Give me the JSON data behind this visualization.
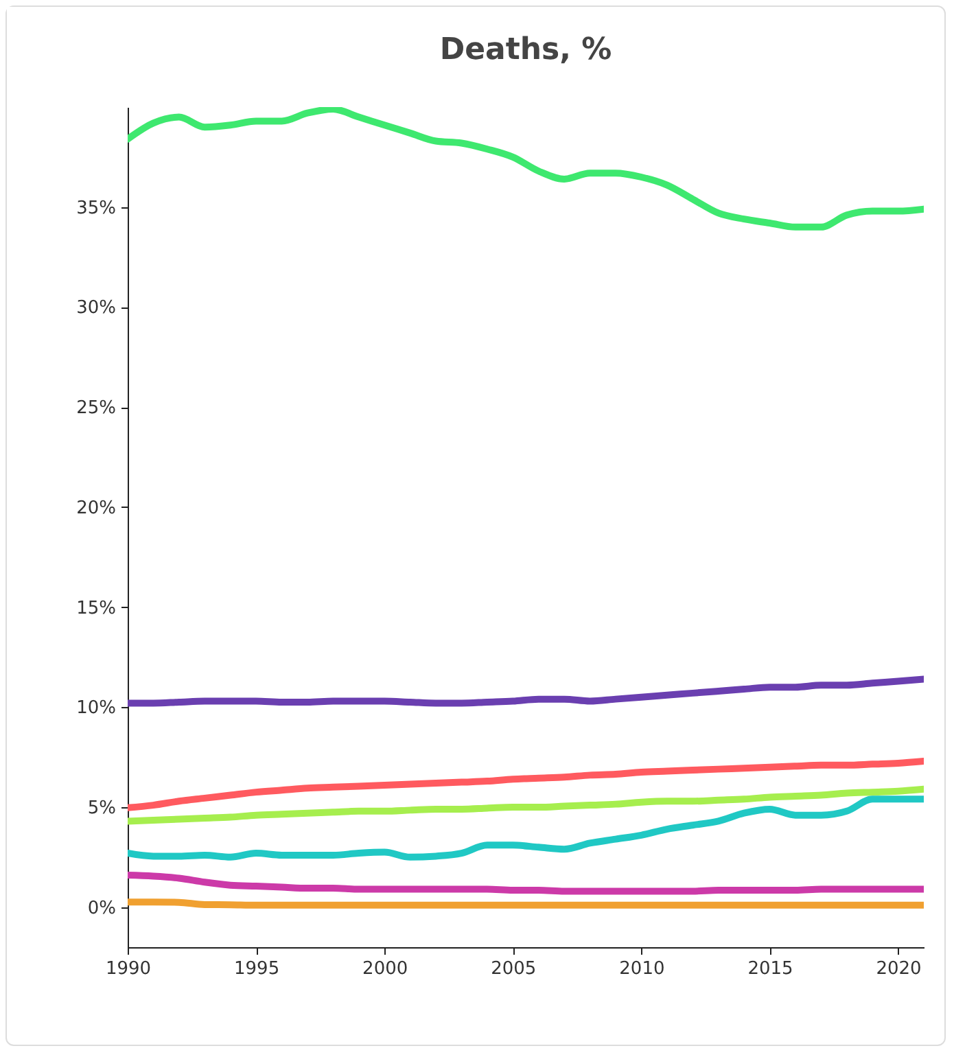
{
  "chart_data": {
    "type": "line",
    "title": "Deaths, %",
    "x": [
      1990,
      1991,
      1992,
      1993,
      1994,
      1995,
      1996,
      1997,
      1998,
      1999,
      2000,
      2001,
      2002,
      2003,
      2004,
      2005,
      2006,
      2007,
      2008,
      2009,
      2010,
      2011,
      2012,
      2013,
      2014,
      2015,
      2016,
      2017,
      2018,
      2019,
      2020,
      2021
    ],
    "series": [
      {
        "color": "#3ee86f",
        "values": [
          38.4,
          39.2,
          39.5,
          39.0,
          39.1,
          39.3,
          39.3,
          39.7,
          39.9,
          39.5,
          39.1,
          38.7,
          38.3,
          38.2,
          37.9,
          37.5,
          36.8,
          36.4,
          36.7,
          36.7,
          36.5,
          36.1,
          35.4,
          34.7,
          34.4,
          34.2,
          34.0,
          34.0,
          34.6,
          34.8,
          34.8,
          34.9
        ]
      },
      {
        "color": "#6a3fb0",
        "values": [
          10.2,
          10.2,
          10.25,
          10.3,
          10.3,
          10.3,
          10.25,
          10.25,
          10.3,
          10.3,
          10.3,
          10.25,
          10.2,
          10.2,
          10.25,
          10.3,
          10.4,
          10.4,
          10.3,
          10.4,
          10.5,
          10.6,
          10.7,
          10.8,
          10.9,
          11.0,
          11.0,
          11.1,
          11.1,
          11.2,
          11.3,
          11.4
        ]
      },
      {
        "color": "#ff5a5f",
        "values": [
          4.97,
          5.1,
          5.3,
          5.45,
          5.6,
          5.75,
          5.85,
          5.95,
          6.0,
          6.05,
          6.1,
          6.15,
          6.2,
          6.25,
          6.3,
          6.4,
          6.45,
          6.5,
          6.6,
          6.65,
          6.75,
          6.8,
          6.85,
          6.9,
          6.95,
          7.0,
          7.05,
          7.1,
          7.1,
          7.15,
          7.2,
          7.3
        ]
      },
      {
        "color": "#a6ee4e",
        "values": [
          4.3,
          4.35,
          4.4,
          4.45,
          4.5,
          4.6,
          4.65,
          4.7,
          4.75,
          4.8,
          4.8,
          4.85,
          4.9,
          4.9,
          4.95,
          5.0,
          5.0,
          5.05,
          5.1,
          5.15,
          5.25,
          5.3,
          5.3,
          5.35,
          5.4,
          5.5,
          5.55,
          5.6,
          5.7,
          5.75,
          5.8,
          5.9
        ]
      },
      {
        "color": "#20c8c4",
        "values": [
          2.7,
          2.55,
          2.55,
          2.6,
          2.5,
          2.7,
          2.6,
          2.6,
          2.6,
          2.7,
          2.75,
          2.5,
          2.55,
          2.7,
          3.1,
          3.1,
          3.0,
          2.9,
          3.2,
          3.4,
          3.6,
          3.9,
          4.1,
          4.3,
          4.7,
          4.9,
          4.6,
          4.6,
          4.8,
          5.4,
          5.4,
          5.4
        ]
      },
      {
        "color": "#cc3aa8",
        "values": [
          1.6,
          1.55,
          1.45,
          1.25,
          1.1,
          1.05,
          1.0,
          0.95,
          0.95,
          0.9,
          0.9,
          0.9,
          0.9,
          0.9,
          0.9,
          0.85,
          0.85,
          0.8,
          0.8,
          0.8,
          0.8,
          0.8,
          0.8,
          0.85,
          0.85,
          0.85,
          0.85,
          0.9,
          0.9,
          0.9,
          0.9,
          0.9
        ]
      },
      {
        "color": "#f0a030",
        "values": [
          0.26,
          0.26,
          0.24,
          0.13,
          0.12,
          0.1,
          0.1,
          0.1,
          0.1,
          0.1,
          0.1,
          0.1,
          0.1,
          0.1,
          0.1,
          0.1,
          0.1,
          0.1,
          0.1,
          0.1,
          0.1,
          0.1,
          0.1,
          0.1,
          0.1,
          0.1,
          0.1,
          0.1,
          0.1,
          0.1,
          0.1,
          0.1
        ]
      }
    ],
    "xlim": [
      1990,
      2021
    ],
    "xticks": [
      1990,
      1995,
      2000,
      2005,
      2010,
      2015,
      2020
    ],
    "ylim": [
      -2,
      40
    ],
    "yticks": [
      {
        "value": 0,
        "label": "0%"
      },
      {
        "value": 5,
        "label": "5%"
      },
      {
        "value": 10,
        "label": "10%"
      },
      {
        "value": 15,
        "label": "15%"
      },
      {
        "value": 20,
        "label": "20%"
      },
      {
        "value": 25,
        "label": "25%"
      },
      {
        "value": 30,
        "label": "30%"
      },
      {
        "value": 35,
        "label": "35%"
      }
    ],
    "grid": false
  }
}
